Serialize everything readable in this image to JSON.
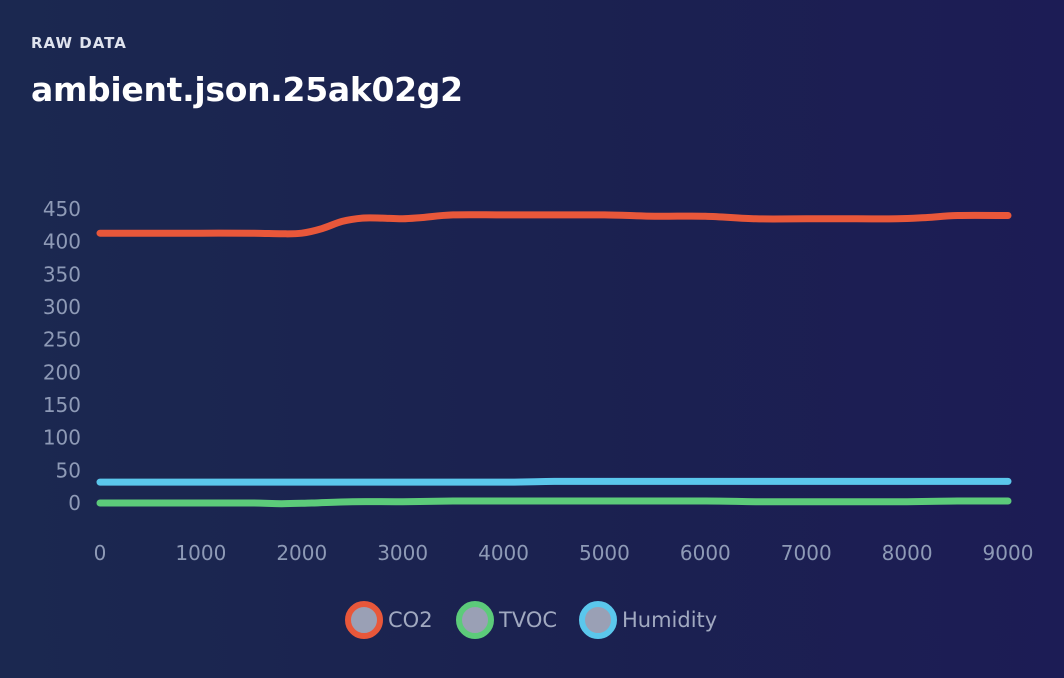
{
  "header": {
    "eyebrow": "RAW DATA",
    "title": "ambient.json.25ak02g2"
  },
  "chart_data": {
    "type": "line",
    "title": "",
    "xlabel": "",
    "ylabel": "",
    "xlim": [
      0,
      9000
    ],
    "ylim": [
      0,
      450
    ],
    "x_ticks": [
      0,
      1000,
      2000,
      3000,
      4000,
      5000,
      6000,
      7000,
      8000,
      9000
    ],
    "y_ticks": [
      0,
      50,
      100,
      150,
      200,
      250,
      300,
      350,
      400,
      450
    ],
    "grid": false,
    "legend_position": "bottom",
    "series": [
      {
        "name": "CO2",
        "color": "#e8573a",
        "points": [
          [
            0,
            413
          ],
          [
            500,
            413
          ],
          [
            1000,
            413
          ],
          [
            1500,
            413
          ],
          [
            1800,
            412
          ],
          [
            2000,
            413
          ],
          [
            2200,
            420
          ],
          [
            2400,
            431
          ],
          [
            2600,
            436
          ],
          [
            2800,
            436
          ],
          [
            3000,
            435
          ],
          [
            3200,
            437
          ],
          [
            3500,
            441
          ],
          [
            4000,
            441
          ],
          [
            4500,
            441
          ],
          [
            5000,
            441
          ],
          [
            5500,
            439
          ],
          [
            6000,
            439
          ],
          [
            6500,
            435
          ],
          [
            7000,
            435
          ],
          [
            7500,
            435
          ],
          [
            7900,
            435
          ],
          [
            8200,
            437
          ],
          [
            8500,
            440
          ],
          [
            9000,
            440
          ]
        ]
      },
      {
        "name": "TVOC",
        "color": "#5ccb7a",
        "points": [
          [
            0,
            0
          ],
          [
            500,
            0
          ],
          [
            1000,
            0
          ],
          [
            1500,
            0
          ],
          [
            1800,
            -1
          ],
          [
            2100,
            0
          ],
          [
            2500,
            2
          ],
          [
            3000,
            2
          ],
          [
            3500,
            3
          ],
          [
            4000,
            3
          ],
          [
            5000,
            3
          ],
          [
            6000,
            3
          ],
          [
            6500,
            2
          ],
          [
            7000,
            2
          ],
          [
            8000,
            2
          ],
          [
            8500,
            3
          ],
          [
            9000,
            3
          ]
        ]
      },
      {
        "name": "Humidity",
        "color": "#5bc7ec",
        "points": [
          [
            0,
            32
          ],
          [
            1000,
            32
          ],
          [
            2000,
            32
          ],
          [
            3000,
            32
          ],
          [
            4000,
            32
          ],
          [
            4500,
            33
          ],
          [
            5000,
            33
          ],
          [
            6000,
            33
          ],
          [
            7000,
            33
          ],
          [
            8000,
            33
          ],
          [
            9000,
            33
          ]
        ]
      }
    ]
  }
}
